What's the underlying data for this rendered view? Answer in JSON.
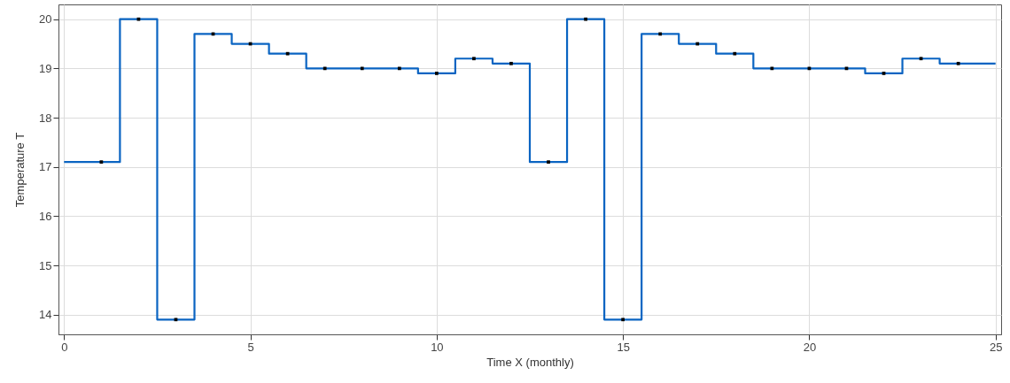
{
  "chart_data": {
    "type": "step",
    "xlabel": "Time X (monthly)",
    "ylabel": "Temperature T",
    "x": [
      0,
      1,
      2,
      3,
      4,
      5,
      6,
      7,
      8,
      9,
      10,
      11,
      12,
      13,
      14,
      15,
      16,
      17,
      18,
      19,
      20,
      21,
      22,
      23,
      24,
      25
    ],
    "series": [
      {
        "color": "#0a64c2",
        "values": [
          17.1,
          17.1,
          20,
          13.9,
          19.7,
          19.5,
          19.3,
          19.0,
          19.0,
          19.0,
          18.9,
          19.2,
          19.1,
          17.1,
          20,
          13.9,
          19.7,
          19.5,
          19.3,
          19.0,
          19.0,
          19.0,
          18.9,
          19.2,
          19.1,
          19.1
        ]
      },
      {
        "type": "scatter",
        "color": "#000000",
        "marker": "square",
        "x": [
          1,
          2,
          3,
          4,
          5,
          6,
          7,
          8,
          9,
          10,
          11,
          12,
          13,
          14,
          15,
          16,
          17,
          18,
          19,
          20,
          21,
          22,
          23,
          24
        ],
        "values": [
          17.1,
          20,
          13.9,
          19.7,
          19.5,
          19.3,
          19.0,
          19.0,
          19.0,
          18.9,
          19.2,
          19.1,
          17.1,
          20,
          13.9,
          19.7,
          19.5,
          19.3,
          19.0,
          19.0,
          19.0,
          18.9,
          19.2,
          19.1
        ]
      }
    ],
    "xlim": [
      -0.15,
      25.15
    ],
    "ylim": [
      13.6,
      20.3
    ],
    "xticks": [
      0,
      5,
      10,
      15,
      20,
      25
    ],
    "yticks": [
      14,
      15,
      16,
      17,
      18,
      19,
      20
    ],
    "grid": true,
    "line_style": "solid"
  }
}
